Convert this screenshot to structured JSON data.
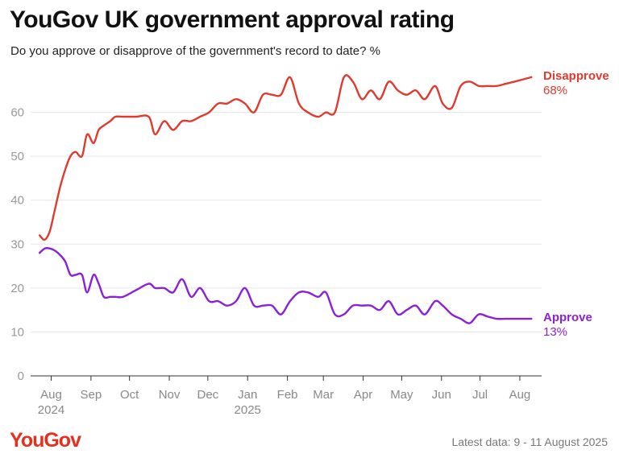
{
  "header": {
    "title": "YouGov UK government approval rating",
    "subtitle": "Do you approve or disapprove of the government's record to date? %"
  },
  "footer": {
    "logo": "YouGov",
    "latest": "Latest data: 9 - 11 August 2025"
  },
  "colors": {
    "disapprove": "#e03a2f",
    "approve": "#8b20d8",
    "logo": "#e6301f",
    "grid": "#e6e6e6"
  },
  "chart_data": {
    "type": "line",
    "ylim": [
      0,
      70
    ],
    "yticks": [
      0,
      10,
      20,
      30,
      40,
      50,
      60
    ],
    "grid": "horizontal",
    "xlim": [
      "2024-07-16",
      "2025-08-18"
    ],
    "xticks": [
      {
        "date": "2024-08-01",
        "label": "Aug",
        "sublabel": "2024"
      },
      {
        "date": "2024-09-01",
        "label": "Sep",
        "sublabel": ""
      },
      {
        "date": "2024-10-01",
        "label": "Oct",
        "sublabel": ""
      },
      {
        "date": "2024-11-01",
        "label": "Nov",
        "sublabel": ""
      },
      {
        "date": "2024-12-01",
        "label": "Dec",
        "sublabel": ""
      },
      {
        "date": "2025-01-01",
        "label": "Jan",
        "sublabel": "2025"
      },
      {
        "date": "2025-02-01",
        "label": "Feb",
        "sublabel": ""
      },
      {
        "date": "2025-03-01",
        "label": "Mar",
        "sublabel": ""
      },
      {
        "date": "2025-04-01",
        "label": "Apr",
        "sublabel": ""
      },
      {
        "date": "2025-05-01",
        "label": "May",
        "sublabel": ""
      },
      {
        "date": "2025-06-01",
        "label": "Jun",
        "sublabel": ""
      },
      {
        "date": "2025-07-01",
        "label": "Jul",
        "sublabel": ""
      },
      {
        "date": "2025-08-01",
        "label": "Aug",
        "sublabel": ""
      }
    ],
    "series": [
      {
        "name": "Disapprove",
        "end_label": "68%",
        "points": [
          [
            "2024-07-23",
            32
          ],
          [
            "2024-07-27",
            31
          ],
          [
            "2024-07-31",
            33
          ],
          [
            "2024-08-04",
            38
          ],
          [
            "2024-08-08",
            43
          ],
          [
            "2024-08-12",
            47
          ],
          [
            "2024-08-16",
            50
          ],
          [
            "2024-08-20",
            51
          ],
          [
            "2024-08-25",
            50
          ],
          [
            "2024-08-29",
            55
          ],
          [
            "2024-09-03",
            53
          ],
          [
            "2024-09-07",
            56
          ],
          [
            "2024-09-11",
            57
          ],
          [
            "2024-09-16",
            58
          ],
          [
            "2024-09-20",
            59
          ],
          [
            "2024-09-26",
            59
          ],
          [
            "2024-10-06",
            59
          ],
          [
            "2024-10-16",
            59
          ],
          [
            "2024-10-21",
            55
          ],
          [
            "2024-10-28",
            58
          ],
          [
            "2024-11-04",
            56
          ],
          [
            "2024-11-11",
            58
          ],
          [
            "2024-11-18",
            58
          ],
          [
            "2024-11-25",
            59
          ],
          [
            "2024-12-02",
            60
          ],
          [
            "2024-12-09",
            62
          ],
          [
            "2024-12-16",
            62
          ],
          [
            "2024-12-23",
            63
          ],
          [
            "2024-12-30",
            62
          ],
          [
            "2025-01-06",
            60
          ],
          [
            "2025-01-13",
            64
          ],
          [
            "2025-01-20",
            64
          ],
          [
            "2025-01-27",
            64
          ],
          [
            "2025-02-03",
            68
          ],
          [
            "2025-02-10",
            62
          ],
          [
            "2025-02-17",
            60
          ],
          [
            "2025-02-25",
            59
          ],
          [
            "2025-03-03",
            60
          ],
          [
            "2025-03-10",
            60
          ],
          [
            "2025-03-17",
            68
          ],
          [
            "2025-03-24",
            67
          ],
          [
            "2025-03-31",
            63
          ],
          [
            "2025-04-07",
            65
          ],
          [
            "2025-04-14",
            63
          ],
          [
            "2025-04-21",
            67
          ],
          [
            "2025-04-28",
            65
          ],
          [
            "2025-05-05",
            64
          ],
          [
            "2025-05-12",
            65
          ],
          [
            "2025-05-19",
            63
          ],
          [
            "2025-05-27",
            66
          ],
          [
            "2025-06-02",
            62
          ],
          [
            "2025-06-09",
            61
          ],
          [
            "2025-06-16",
            66
          ],
          [
            "2025-06-23",
            67
          ],
          [
            "2025-06-30",
            66
          ],
          [
            "2025-07-07",
            66
          ],
          [
            "2025-07-14",
            66
          ],
          [
            "2025-07-21",
            66.5
          ],
          [
            "2025-07-28",
            67
          ],
          [
            "2025-08-10",
            68
          ]
        ]
      },
      {
        "name": "Approve",
        "end_label": "13%",
        "points": [
          [
            "2024-07-23",
            28
          ],
          [
            "2024-07-27",
            29
          ],
          [
            "2024-07-31",
            29
          ],
          [
            "2024-08-04",
            28.5
          ],
          [
            "2024-08-08",
            27.5
          ],
          [
            "2024-08-12",
            26
          ],
          [
            "2024-08-16",
            23
          ],
          [
            "2024-08-20",
            23
          ],
          [
            "2024-08-25",
            23
          ],
          [
            "2024-08-29",
            19
          ],
          [
            "2024-09-03",
            23
          ],
          [
            "2024-09-07",
            21
          ],
          [
            "2024-09-11",
            18
          ],
          [
            "2024-09-16",
            18
          ],
          [
            "2024-09-20",
            18
          ],
          [
            "2024-09-26",
            18
          ],
          [
            "2024-10-06",
            19.5
          ],
          [
            "2024-10-16",
            21
          ],
          [
            "2024-10-21",
            20
          ],
          [
            "2024-10-28",
            20
          ],
          [
            "2024-11-04",
            19
          ],
          [
            "2024-11-11",
            22
          ],
          [
            "2024-11-18",
            18
          ],
          [
            "2024-11-25",
            20
          ],
          [
            "2024-12-02",
            17
          ],
          [
            "2024-12-09",
            17
          ],
          [
            "2024-12-16",
            16
          ],
          [
            "2024-12-23",
            17
          ],
          [
            "2024-12-30",
            20
          ],
          [
            "2025-01-06",
            16
          ],
          [
            "2025-01-13",
            16
          ],
          [
            "2025-01-20",
            16
          ],
          [
            "2025-01-27",
            14
          ],
          [
            "2025-02-03",
            17
          ],
          [
            "2025-02-10",
            19
          ],
          [
            "2025-02-17",
            19
          ],
          [
            "2025-02-25",
            18
          ],
          [
            "2025-03-03",
            19
          ],
          [
            "2025-03-10",
            14
          ],
          [
            "2025-03-17",
            14
          ],
          [
            "2025-03-24",
            16
          ],
          [
            "2025-03-31",
            16
          ],
          [
            "2025-04-07",
            16
          ],
          [
            "2025-04-14",
            15
          ],
          [
            "2025-04-21",
            17
          ],
          [
            "2025-04-28",
            14
          ],
          [
            "2025-05-05",
            15
          ],
          [
            "2025-05-12",
            16
          ],
          [
            "2025-05-19",
            14
          ],
          [
            "2025-05-27",
            17
          ],
          [
            "2025-06-02",
            16
          ],
          [
            "2025-06-09",
            14
          ],
          [
            "2025-06-16",
            13
          ],
          [
            "2025-06-23",
            12
          ],
          [
            "2025-06-30",
            14
          ],
          [
            "2025-07-07",
            13.5
          ],
          [
            "2025-07-14",
            13
          ],
          [
            "2025-07-21",
            13
          ],
          [
            "2025-07-28",
            13
          ],
          [
            "2025-08-10",
            13
          ]
        ]
      }
    ]
  }
}
